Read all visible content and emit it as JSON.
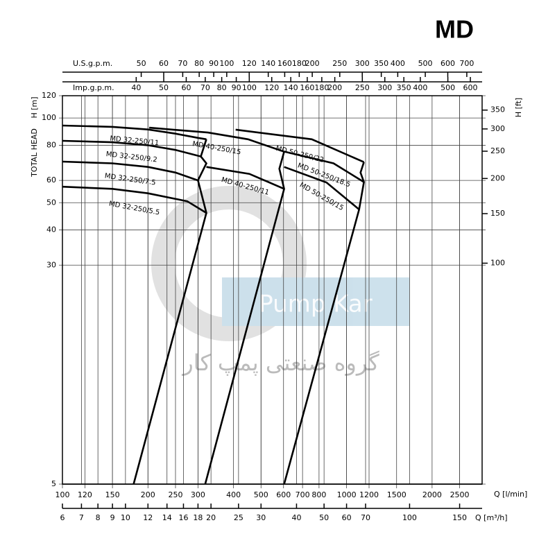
{
  "chart_data": {
    "type": "line",
    "title": "MD",
    "y_label": "H [m]",
    "y_label_2": "TOTAL HEAD",
    "y2_label": "H [ft]",
    "x_label": "Q [l/min]",
    "log_x": true,
    "log_y": true,
    "grid": true,
    "xlim": [
      100,
      3000
    ],
    "xticks": [
      100,
      120,
      150,
      200,
      250,
      300,
      400,
      500,
      600,
      700,
      800,
      1000,
      1200,
      1500,
      2000,
      2500
    ],
    "ylim": [
      5,
      120
    ],
    "yticks": [
      5,
      30,
      40,
      50,
      60,
      80,
      100,
      120
    ],
    "y2lim": [
      16.4,
      393.7
    ],
    "y2ticks": [
      100,
      150,
      200,
      250,
      300,
      350
    ],
    "extra_x_axes": [
      {
        "label": "Q [m³/h]",
        "lim": [
          6,
          180
        ],
        "ticks": [
          6,
          7,
          8,
          9,
          10,
          12,
          14,
          16,
          18,
          20,
          25,
          30,
          40,
          50,
          60,
          70,
          100,
          150
        ]
      },
      {
        "label": "U.S.g.p.m.",
        "lim": [
          26.4,
          792.6
        ],
        "ticks": [
          50,
          60,
          70,
          80,
          90,
          100,
          120,
          140,
          160,
          180,
          200,
          250,
          300,
          350,
          400,
          500,
          600,
          700
        ]
      },
      {
        "label": "Imp.g.p.m.",
        "lim": [
          22,
          660
        ],
        "ticks": [
          40,
          50,
          60,
          70,
          80,
          90,
          100,
          120,
          140,
          160,
          180,
          200,
          250,
          300,
          350,
          400,
          500,
          600
        ]
      }
    ],
    "series": [
      {
        "name": "MD 32-250/11",
        "color": "#000000",
        "x": [
          100,
          150,
          200,
          250,
          300,
          321
        ],
        "values": [
          94,
          93,
          91,
          88,
          85,
          84
        ]
      },
      {
        "name": "MD 32-250/9.2",
        "color": "#000000",
        "x": [
          100,
          150,
          200,
          250,
          307
        ],
        "values": [
          83,
          82,
          80,
          77,
          73
        ]
      },
      {
        "name": "MD 32-250/7.5",
        "color": "#000000",
        "x": [
          100,
          150,
          200,
          250,
          300
        ],
        "values": [
          70,
          69,
          67,
          64,
          60
        ]
      },
      {
        "name": "MD 32-250/5.5",
        "color": "#000000",
        "x": [
          100,
          150,
          200,
          275,
          321
        ],
        "values": [
          57,
          56,
          54,
          50.6,
          46
        ]
      },
      {
        "name": "MD 40-250/15",
        "color": "#000000",
        "x": [
          202,
          325,
          450,
          603
        ],
        "values": [
          92.4,
          88.8,
          84,
          75.9
        ]
      },
      {
        "name": "MD 40-250/11",
        "color": "#000000",
        "x": [
          321,
          455,
          603
        ],
        "values": [
          67,
          63.3,
          56
        ]
      },
      {
        "name": "MD 50-250/22",
        "color": "#000000",
        "x": [
          407,
          754,
          1151
        ],
        "values": [
          90.9,
          84,
          69.7
        ]
      },
      {
        "name": "MD 50-250/18.5",
        "color": "#000000",
        "x": [
          603,
          900,
          1151
        ],
        "values": [
          76,
          69,
          59.2
        ]
      },
      {
        "name": "MD 50-250/15",
        "color": "#000000",
        "x": [
          603,
          850,
          1107
        ],
        "values": [
          67,
          59,
          47.3
        ]
      }
    ],
    "limit_lines": [
      {
        "x": [
          321,
          307,
          321,
          300,
          321,
          178
        ],
        "values": [
          84,
          73,
          69,
          60,
          46,
          5
        ]
      },
      {
        "x": [
          603,
          580,
          603,
          318
        ],
        "values": [
          75.9,
          66,
          56,
          5
        ]
      },
      {
        "x": [
          1151,
          1120,
          1151,
          1107,
          603
        ],
        "values": [
          69.7,
          64,
          59.2,
          47.3,
          5
        ]
      }
    ],
    "watermark": [
      "Pump Kar",
      "گروه صنعتی پمپ کار"
    ]
  }
}
